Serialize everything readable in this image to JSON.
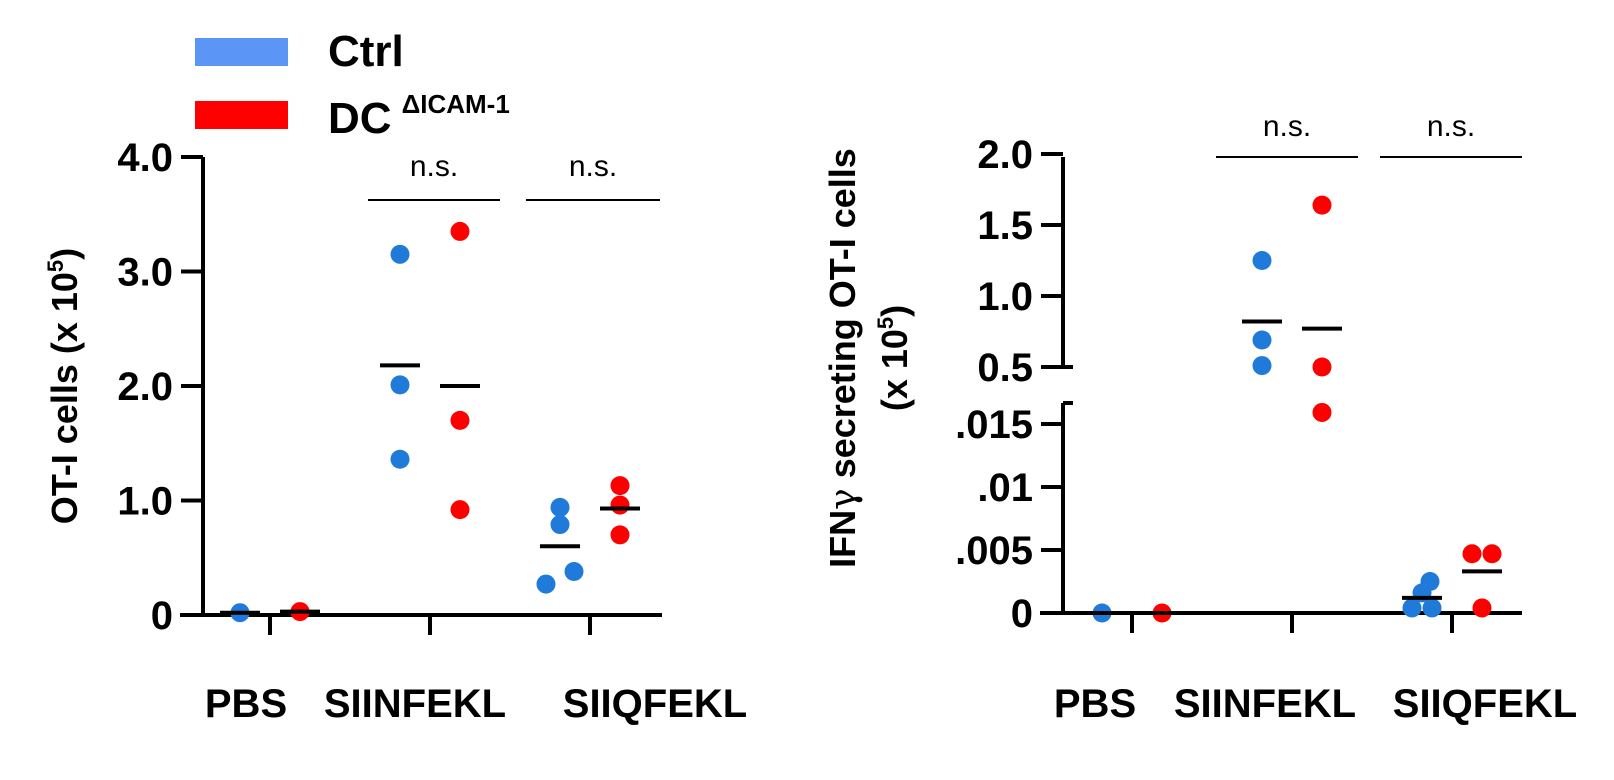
{
  "legend": [
    {
      "label": "Ctrl",
      "color": "#5b96f7"
    },
    {
      "label": "DC",
      "sup": "ΔICAM-1",
      "color": "#ff0000"
    }
  ],
  "colors": {
    "ctrl_point": "#1f7ad9",
    "dc_point": "#ff0000",
    "axis": "#000000"
  },
  "chart_data": [
    {
      "type": "scatter",
      "ylabel": "OT-I cells (x 10",
      "ylabel_sup": "5",
      "ylabel_end": ")",
      "categories": [
        "PBS",
        "SIINFEKL",
        "SIIQFEKL"
      ],
      "ylim": [
        0,
        4.0
      ],
      "yticks": [
        {
          "value": 0,
          "label": "0"
        },
        {
          "value": 1.0,
          "label": "1.0"
        },
        {
          "value": 2.0,
          "label": "2.0"
        },
        {
          "value": 3.0,
          "label": "3.0"
        },
        {
          "value": 4.0,
          "label": "4.0"
        }
      ],
      "series": [
        {
          "name": "Ctrl",
          "groups": [
            {
              "category": "PBS",
              "points": [
                0.02
              ],
              "mean": 0.02
            },
            {
              "category": "SIINFEKL",
              "points": [
                3.15,
                2.01,
                1.36
              ],
              "mean": 2.18
            },
            {
              "category": "SIIQFEKL",
              "points": [
                0.94,
                0.79,
                0.38,
                0.27
              ],
              "mean": 0.6
            }
          ]
        },
        {
          "name": "DC ΔICAM-1",
          "groups": [
            {
              "category": "PBS",
              "points": [
                0.03
              ],
              "mean": 0.03
            },
            {
              "category": "SIINFEKL",
              "points": [
                3.35,
                1.7,
                0.92
              ],
              "mean": 2.0
            },
            {
              "category": "SIIQFEKL",
              "points": [
                1.13,
                0.96,
                0.7
              ],
              "mean": 0.93
            }
          ]
        }
      ],
      "annotations": [
        {
          "label": "n.s.",
          "category": "SIINFEKL"
        },
        {
          "label": "n.s.",
          "category": "SIIQFEKL"
        }
      ]
    },
    {
      "type": "scatter",
      "ylabel_line1_pre": "IFN",
      "ylabel_line1_greek": "γ",
      "ylabel_line1_post": " secreting OT-I cells",
      "ylabel_line2": "(x 10",
      "ylabel_line2_sup": "5",
      "ylabel_line2_end": ")",
      "categories": [
        "PBS",
        "SIINFEKL",
        "SIIQFEKL"
      ],
      "broken_axis": true,
      "ylim_lower": [
        0,
        0.016
      ],
      "ylim_upper": [
        0.5,
        2.0
      ],
      "yticks_lower": [
        {
          "value": 0,
          "label": "0"
        },
        {
          "value": 0.005,
          "label": ".005"
        },
        {
          "value": 0.01,
          "label": ".01"
        },
        {
          "value": 0.015,
          "label": ".015"
        }
      ],
      "yticks_upper": [
        {
          "value": 0.5,
          "label": "0.5"
        },
        {
          "value": 1.0,
          "label": "1.0"
        },
        {
          "value": 1.5,
          "label": "1.5"
        },
        {
          "value": 2.0,
          "label": "2.0"
        }
      ],
      "series": [
        {
          "name": "Ctrl",
          "groups": [
            {
              "category": "PBS",
              "points": [
                0.0
              ],
              "mean": 0.0
            },
            {
              "category": "SIINFEKL",
              "points": [
                1.25,
                0.69,
                0.51
              ],
              "mean": 0.82
            },
            {
              "category": "SIIQFEKL",
              "points": [
                0.0025,
                0.0016,
                0.0004,
                0.0004
              ],
              "mean": 0.0012
            }
          ]
        },
        {
          "name": "DC ΔICAM-1",
          "groups": [
            {
              "category": "PBS",
              "points": [
                0.0
              ],
              "mean": 0.0
            },
            {
              "category": "SIINFEKL",
              "points": [
                1.64,
                0.5,
                0.18
              ],
              "mean": 0.77
            },
            {
              "category": "SIIQFEKL",
              "points": [
                0.0047,
                0.0047,
                0.0004
              ],
              "mean": 0.0033
            }
          ]
        }
      ],
      "annotations": [
        {
          "label": "n.s.",
          "category": "SIINFEKL"
        },
        {
          "label": "n.s.",
          "category": "SIIQFEKL"
        }
      ]
    }
  ]
}
